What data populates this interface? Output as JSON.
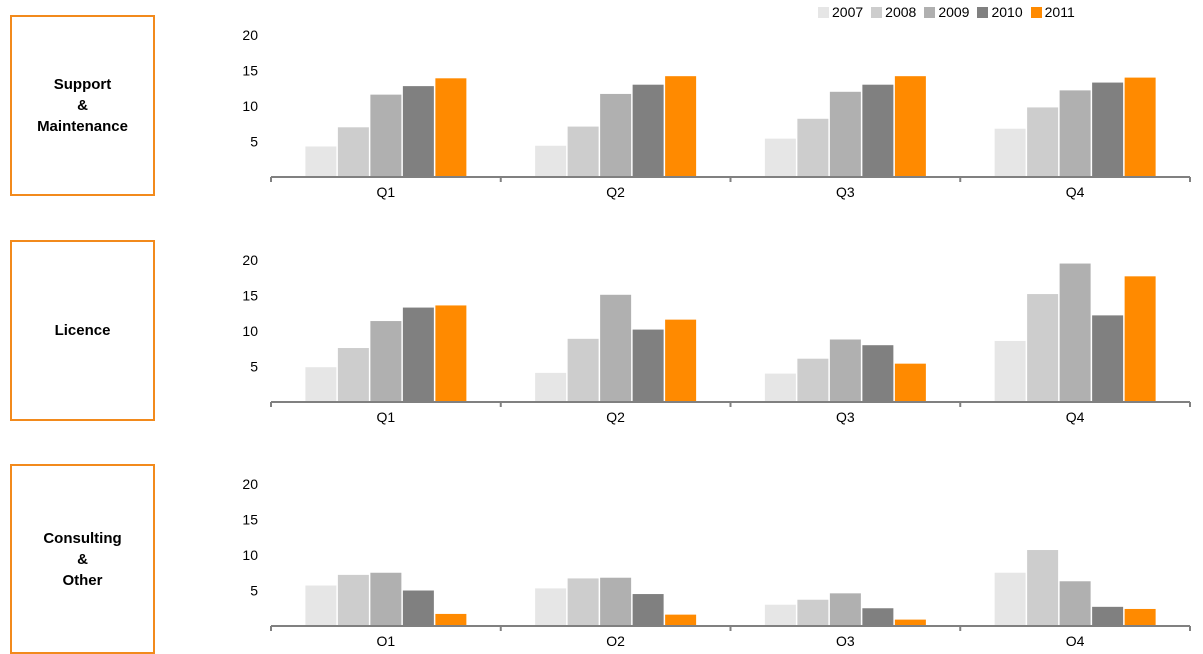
{
  "colors": {
    "2007": "#e6e6e6",
    "2008": "#cdcdcd",
    "2009": "#b0b0b0",
    "2010": "#808080",
    "2011": "#ff8a00",
    "box_border": "#f28a1c"
  },
  "chart_data": [
    {
      "type": "bar",
      "panel_label": [
        "Support",
        "&",
        "Maintenance"
      ],
      "categories": [
        "Q1",
        "Q2",
        "Q3",
        "Q4"
      ],
      "ylim": [
        0,
        20
      ],
      "yticks": [
        "5",
        "10",
        "15",
        "20"
      ],
      "legend": [
        "2007",
        "2008",
        "2009",
        "2010",
        "2011"
      ],
      "legend_position": "top-right",
      "series": [
        {
          "name": "2007",
          "values": [
            4.3,
            4.4,
            5.4,
            6.8
          ]
        },
        {
          "name": "2008",
          "values": [
            7.0,
            7.1,
            8.2,
            9.8
          ]
        },
        {
          "name": "2009",
          "values": [
            11.6,
            11.7,
            12.0,
            12.2
          ]
        },
        {
          "name": "2010",
          "values": [
            12.8,
            13.0,
            13.0,
            13.3
          ]
        },
        {
          "name": "2011",
          "values": [
            13.9,
            14.2,
            14.2,
            14.0
          ]
        }
      ]
    },
    {
      "type": "bar",
      "panel_label": [
        "Licence"
      ],
      "categories": [
        "Q1",
        "Q2",
        "Q3",
        "Q4"
      ],
      "ylim": [
        0,
        20
      ],
      "yticks": [
        "5",
        "10",
        "15",
        "20"
      ],
      "series": [
        {
          "name": "2007",
          "values": [
            4.9,
            4.1,
            4.0,
            8.6
          ]
        },
        {
          "name": "2008",
          "values": [
            7.6,
            8.9,
            6.1,
            15.2
          ]
        },
        {
          "name": "2009",
          "values": [
            11.4,
            15.1,
            8.8,
            19.5
          ]
        },
        {
          "name": "2010",
          "values": [
            13.3,
            10.2,
            8.0,
            12.2
          ]
        },
        {
          "name": "2011",
          "values": [
            13.6,
            11.6,
            5.4,
            17.7
          ]
        }
      ]
    },
    {
      "type": "bar",
      "panel_label": [
        "Consulting",
        "&",
        "Other"
      ],
      "categories": [
        "Q1",
        "Q2",
        "Q3",
        "Q4"
      ],
      "ylim": [
        0,
        20
      ],
      "yticks": [
        "5",
        "10",
        "15",
        "20"
      ],
      "series": [
        {
          "name": "2007",
          "values": [
            5.7,
            5.3,
            3.0,
            7.5
          ]
        },
        {
          "name": "2008",
          "values": [
            7.2,
            6.7,
            3.7,
            10.7
          ]
        },
        {
          "name": "2009",
          "values": [
            7.5,
            6.8,
            4.6,
            6.3
          ]
        },
        {
          "name": "2010",
          "values": [
            5.0,
            4.5,
            2.5,
            2.7
          ]
        },
        {
          "name": "2011",
          "values": [
            1.7,
            1.6,
            0.9,
            2.4
          ]
        }
      ]
    }
  ]
}
